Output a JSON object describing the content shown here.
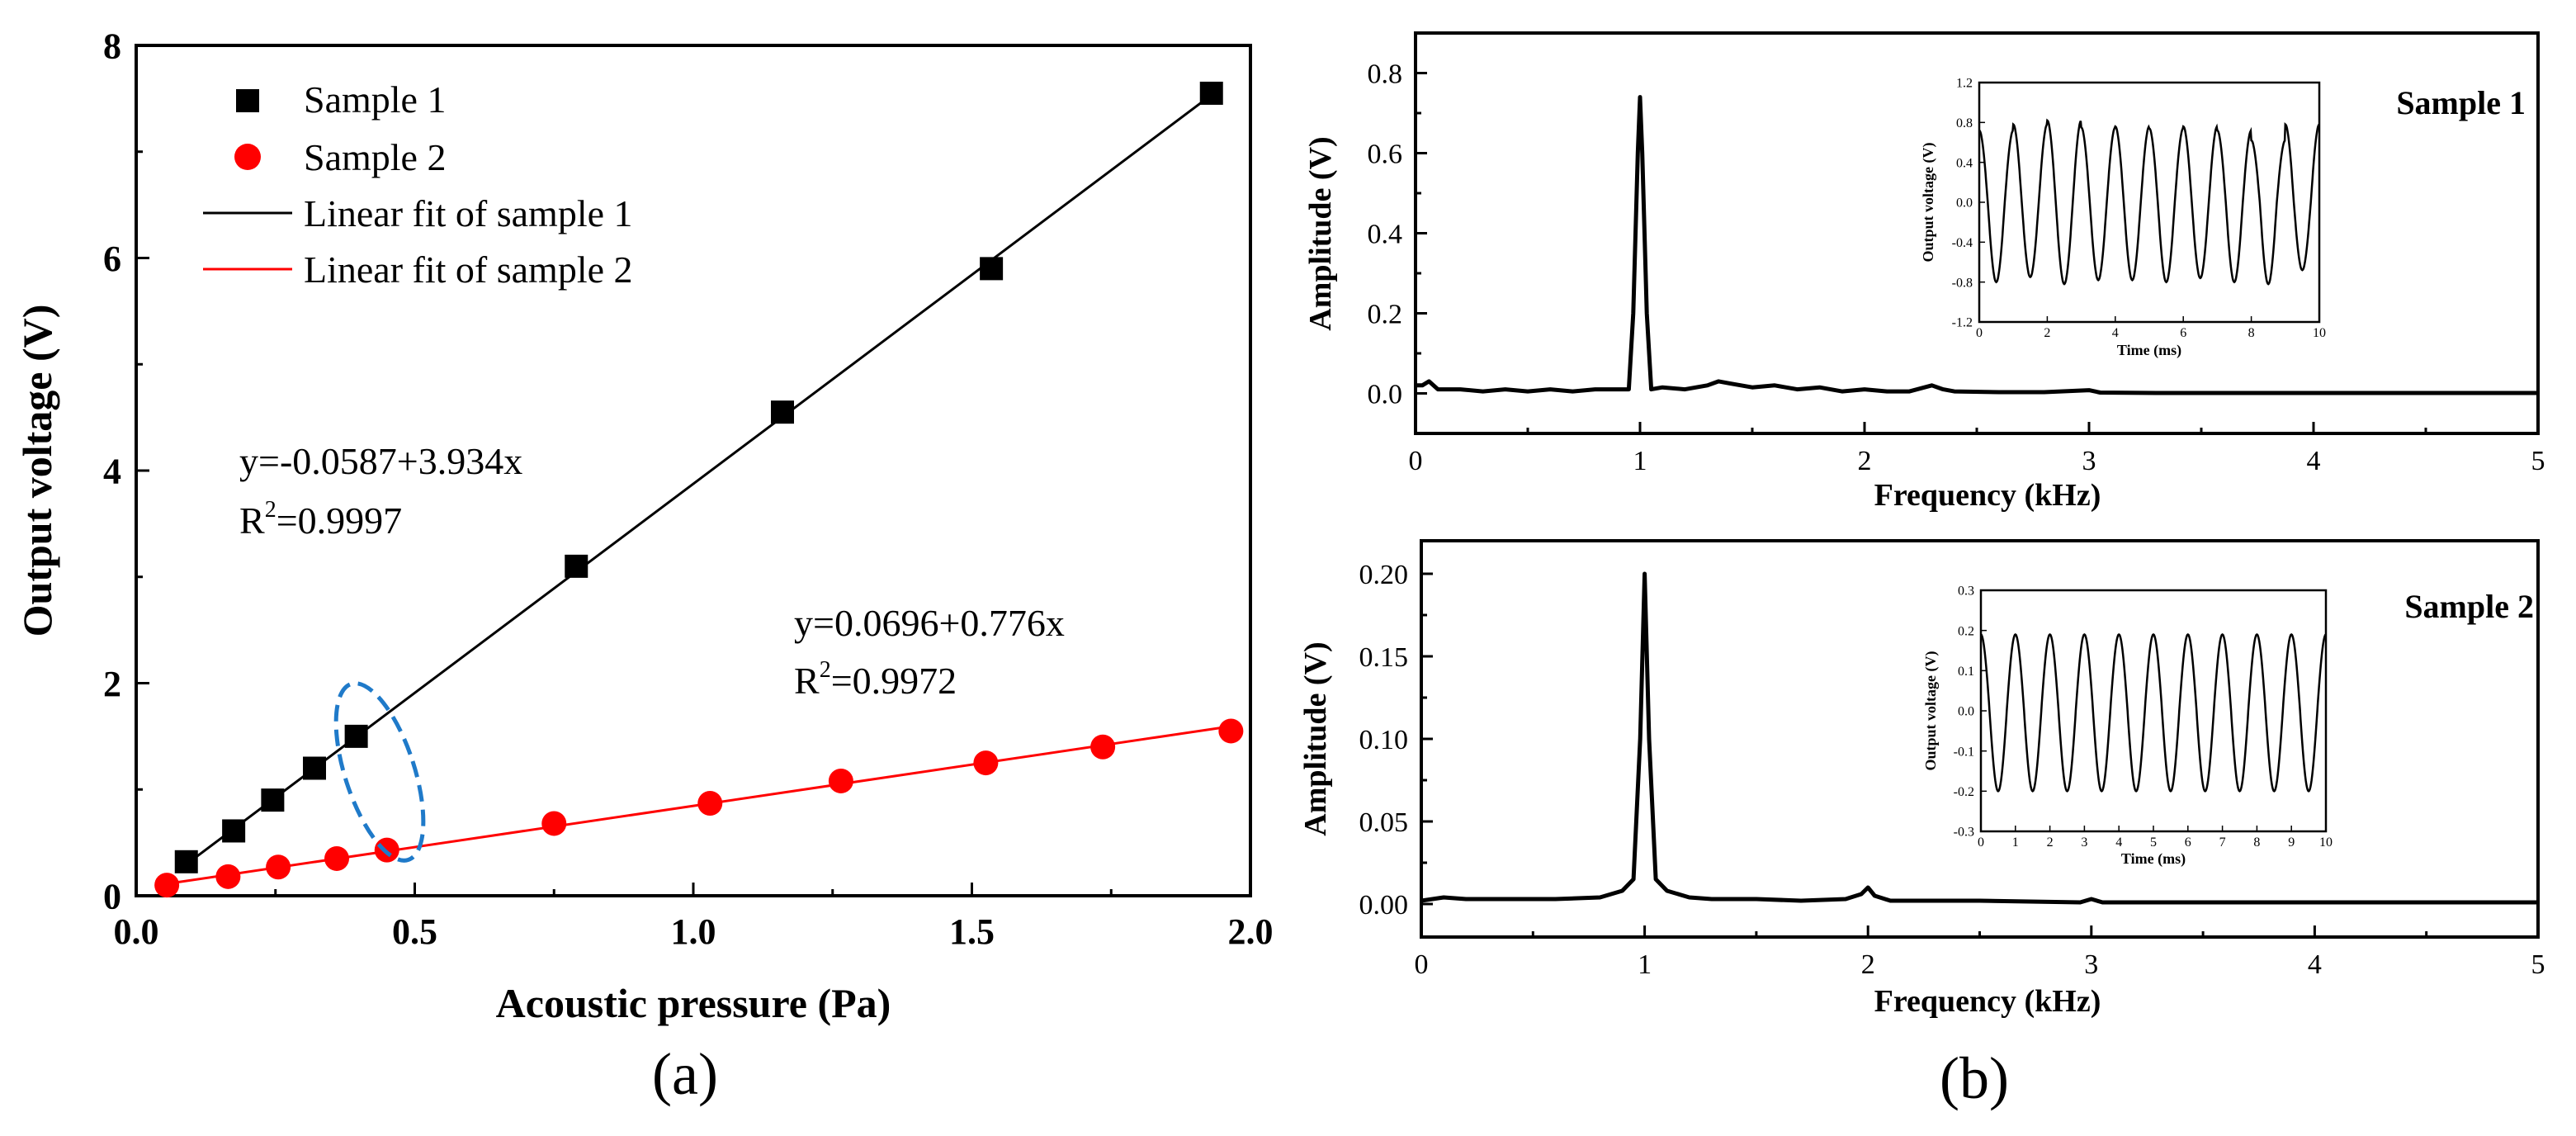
{
  "panel_labels": {
    "a": "(a)",
    "b": "(b)"
  },
  "chart_data": [
    {
      "id": "panel-a",
      "type": "scatter",
      "title": "",
      "xlabel": "Acoustic pressure (Pa)",
      "ylabel": "Output voltage (V)",
      "xlim": [
        0.0,
        2.0
      ],
      "ylim": [
        0,
        8
      ],
      "xticks": [
        0.0,
        0.5,
        1.0,
        1.5,
        2.0
      ],
      "xtick_labels": [
        "0.0",
        "0.5",
        "1.0",
        "1.5",
        "2.0"
      ],
      "yticks": [
        0,
        2,
        4,
        6,
        8
      ],
      "ytick_labels": [
        "0",
        "2",
        "4",
        "6",
        "8"
      ],
      "legend": [
        {
          "label": "Sample 1",
          "kind": "marker-square",
          "color": "#000000"
        },
        {
          "label": "Sample 2",
          "kind": "marker-circle",
          "color": "#ff0000"
        },
        {
          "label": "Linear fit of sample 1",
          "kind": "line",
          "color": "#000000"
        },
        {
          "label": "Linear fit of sample 2",
          "kind": "line",
          "color": "#ff0000"
        }
      ],
      "legend_position": "top-left",
      "series": [
        {
          "name": "Sample 1",
          "color": "#000000",
          "marker": "square",
          "x": [
            0.09,
            0.175,
            0.245,
            0.32,
            0.395,
            0.79,
            1.16,
            1.535,
            1.93
          ],
          "y": [
            0.32,
            0.61,
            0.9,
            1.2,
            1.5,
            3.1,
            4.55,
            5.9,
            7.55
          ]
        },
        {
          "name": "Sample 2",
          "color": "#ff0000",
          "marker": "circle",
          "x": [
            0.055,
            0.165,
            0.255,
            0.36,
            0.45,
            0.75,
            1.03,
            1.265,
            1.525,
            1.735,
            1.965
          ],
          "y": [
            0.1,
            0.18,
            0.27,
            0.35,
            0.43,
            0.68,
            0.87,
            1.08,
            1.25,
            1.4,
            1.55
          ]
        }
      ],
      "fits": [
        {
          "name": "Linear fit of sample 1",
          "color": "#000000",
          "intercept": -0.0587,
          "slope": 3.934,
          "x_range": [
            0.09,
            1.93
          ]
        },
        {
          "name": "Linear fit of sample 2",
          "color": "#ff0000",
          "intercept": 0.0696,
          "slope": 0.776,
          "x_range": [
            0.055,
            1.965
          ]
        }
      ],
      "annotations": {
        "fit1_equation": "y=-0.0587+3.934x",
        "fit1_r2_prefix": "R",
        "fit1_r2_sup": "2",
        "fit1_r2_value": "=0.9997",
        "fit2_equation": "y=0.0696+0.776x",
        "fit2_r2_prefix": "R",
        "fit2_r2_sup": "2",
        "fit2_r2_value": "=0.9972",
        "highlight_ellipse_color": "#1f7ac9"
      }
    },
    {
      "id": "panel-b-top",
      "type": "line",
      "title": "Sample 1",
      "xlabel": "Frequency (kHz)",
      "ylabel": "Amplitude (V)",
      "xlim": [
        0,
        5
      ],
      "ylim": [
        -0.1,
        0.9
      ],
      "xticks": [
        0,
        1,
        2,
        3,
        4,
        5
      ],
      "xtick_labels": [
        "0",
        "1",
        "2",
        "3",
        "4",
        "5"
      ],
      "yticks": [
        0.0,
        0.2,
        0.4,
        0.6,
        0.8
      ],
      "ytick_labels": [
        "0.0",
        "0.2",
        "0.4",
        "0.6",
        "0.8"
      ],
      "series": [
        {
          "name": "Sample 1 spectrum",
          "x": [
            0,
            0.03,
            0.06,
            0.1,
            0.2,
            0.3,
            0.4,
            0.5,
            0.6,
            0.7,
            0.8,
            0.9,
            0.95,
            0.97,
            0.99,
            1.0,
            1.01,
            1.03,
            1.05,
            1.1,
            1.2,
            1.3,
            1.35,
            1.4,
            1.5,
            1.6,
            1.7,
            1.8,
            1.9,
            2.0,
            2.1,
            2.2,
            2.3,
            2.35,
            2.4,
            2.6,
            2.8,
            3.0,
            3.05,
            3.3,
            3.6,
            4.0,
            4.5,
            5.0
          ],
          "y": [
            0.02,
            0.02,
            0.03,
            0.01,
            0.01,
            0.005,
            0.01,
            0.005,
            0.01,
            0.005,
            0.01,
            0.01,
            0.01,
            0.2,
            0.6,
            0.74,
            0.6,
            0.2,
            0.01,
            0.015,
            0.01,
            0.02,
            0.03,
            0.025,
            0.015,
            0.02,
            0.01,
            0.015,
            0.005,
            0.01,
            0.005,
            0.005,
            0.02,
            0.01,
            0.005,
            0.003,
            0.003,
            0.008,
            0.002,
            0.001,
            0.001,
            0.001,
            0.001,
            0.001
          ]
        }
      ],
      "inset": {
        "type": "line",
        "xlabel": "Time (ms)",
        "ylabel": "Output voltage (V)",
        "xlim": [
          0,
          10
        ],
        "ylim": [
          -1.2,
          1.2
        ],
        "xticks": [
          0,
          2,
          4,
          6,
          8,
          10
        ],
        "xtick_labels": [
          "0",
          "2",
          "4",
          "6",
          "8",
          "10"
        ],
        "yticks": [
          -1.2,
          -0.8,
          -0.4,
          0.0,
          0.4,
          0.8,
          1.2
        ],
        "ytick_labels": [
          "-1.2",
          "-0.8",
          "-0.4",
          "0.0",
          "0.4",
          "0.8",
          "1.2"
        ],
        "waveform": {
          "frequency_khz": 1.0,
          "cycles": 10,
          "peaks": [
            0.72,
            0.78,
            0.82,
            0.75,
            0.76,
            0.74,
            0.76,
            0.72,
            0.62,
            0.78
          ],
          "troughs": [
            -0.8,
            -0.75,
            -0.82,
            -0.78,
            -0.78,
            -0.8,
            -0.76,
            -0.8,
            -0.82,
            -0.68
          ]
        }
      }
    },
    {
      "id": "panel-b-bottom",
      "type": "line",
      "title": "Sample 2",
      "xlabel": "Frequency (kHz)",
      "ylabel": "Amplitude (V)",
      "xlim": [
        0,
        5
      ],
      "ylim": [
        -0.02,
        0.22
      ],
      "xticks": [
        0,
        1,
        2,
        3,
        4,
        5
      ],
      "xtick_labels": [
        "0",
        "1",
        "2",
        "3",
        "4",
        "5"
      ],
      "yticks": [
        0.0,
        0.05,
        0.1,
        0.15,
        0.2
      ],
      "ytick_labels": [
        "0.00",
        "0.05",
        "0.10",
        "0.15",
        "0.20"
      ],
      "series": [
        {
          "name": "Sample 2 spectrum",
          "x": [
            0,
            0.05,
            0.1,
            0.2,
            0.4,
            0.6,
            0.8,
            0.9,
            0.95,
            0.98,
            1.0,
            1.02,
            1.05,
            1.1,
            1.2,
            1.3,
            1.5,
            1.7,
            1.9,
            1.97,
            2.0,
            2.03,
            2.1,
            2.5,
            2.95,
            3.0,
            3.05,
            3.5,
            4.0,
            4.5,
            5.0
          ],
          "y": [
            0.002,
            0.003,
            0.004,
            0.003,
            0.003,
            0.003,
            0.004,
            0.008,
            0.015,
            0.1,
            0.2,
            0.1,
            0.015,
            0.008,
            0.004,
            0.003,
            0.003,
            0.002,
            0.003,
            0.006,
            0.01,
            0.005,
            0.002,
            0.002,
            0.001,
            0.003,
            0.001,
            0.001,
            0.001,
            0.001,
            0.001
          ]
        }
      ],
      "inset": {
        "type": "line",
        "xlabel": "Time (ms)",
        "ylabel": "Output voltage (V)",
        "xlim": [
          0,
          10
        ],
        "ylim": [
          -0.3,
          0.3
        ],
        "xticks": [
          0,
          1,
          2,
          3,
          4,
          5,
          6,
          7,
          8,
          9,
          10
        ],
        "xtick_labels": [
          "0",
          "1",
          "2",
          "3",
          "4",
          "5",
          "6",
          "7",
          "8",
          "9",
          "10"
        ],
        "yticks": [
          -0.3,
          -0.2,
          -0.1,
          0.0,
          0.1,
          0.2,
          0.3
        ],
        "ytick_labels": [
          "-0.3",
          "-0.2",
          "-0.1",
          "0.0",
          "0.1",
          "0.2",
          "0.3"
        ],
        "waveform": {
          "frequency_khz": 1.0,
          "cycles": 10,
          "peaks": [
            0.19,
            0.19,
            0.19,
            0.19,
            0.19,
            0.19,
            0.19,
            0.19,
            0.19,
            0.19
          ],
          "troughs": [
            -0.2,
            -0.2,
            -0.2,
            -0.2,
            -0.2,
            -0.2,
            -0.2,
            -0.2,
            -0.2,
            -0.2
          ]
        }
      }
    }
  ]
}
